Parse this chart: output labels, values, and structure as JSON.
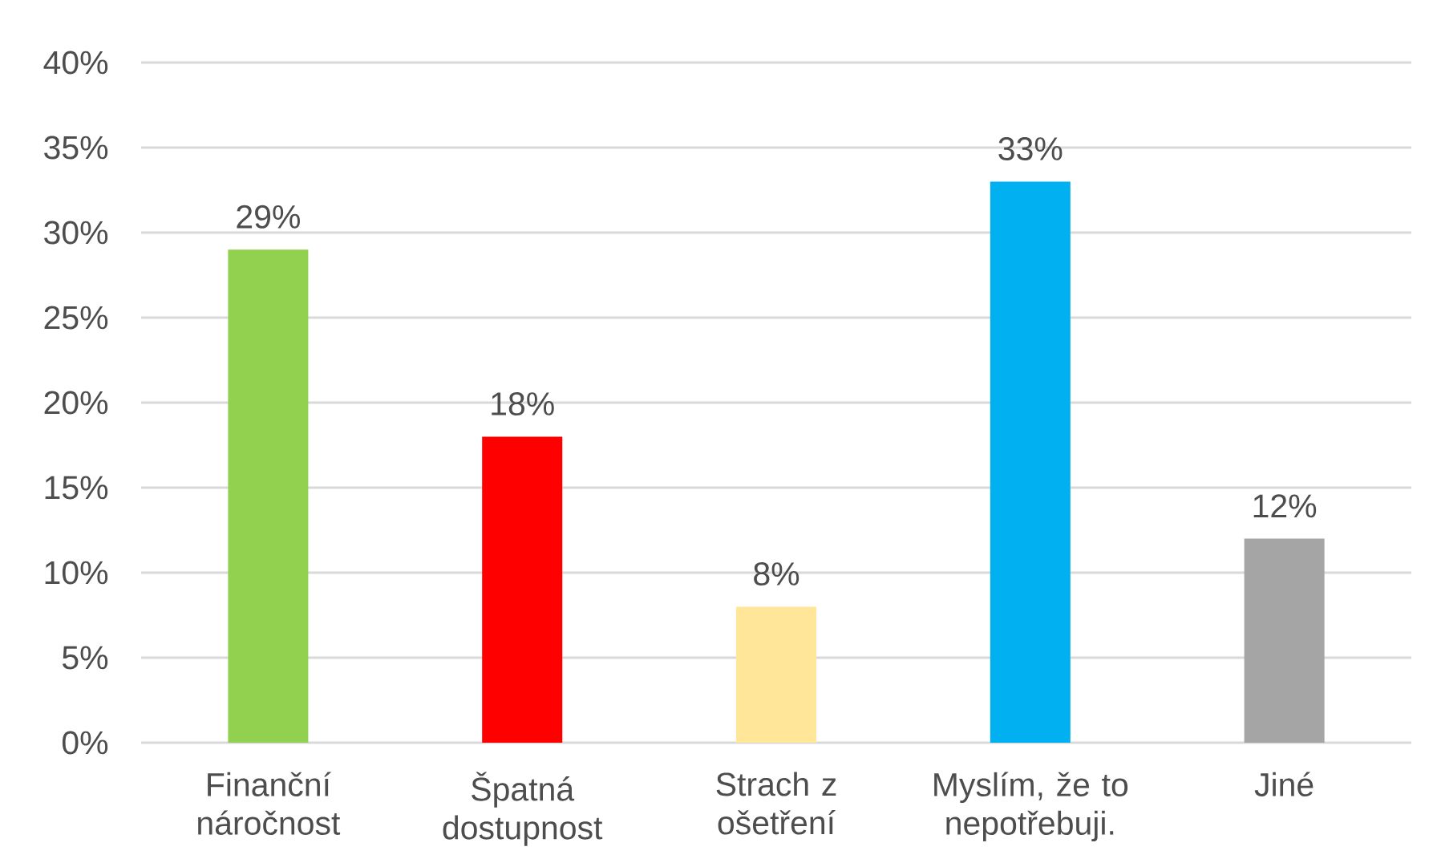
{
  "chart_data": {
    "type": "bar",
    "categories": [
      "Finanční náročnost",
      "Špatná dostupnost",
      "Strach z ošetření",
      "Myslím, že to nepotřebuji.",
      "Jiné"
    ],
    "values": [
      29,
      18,
      8,
      33,
      12
    ],
    "colors": [
      "#92d050",
      "#ff0000",
      "#ffe699",
      "#00b0f0",
      "#a5a5a5"
    ],
    "value_labels": [
      "29%",
      "18%",
      "8%",
      "33%",
      "12%"
    ],
    "ylim": [
      0,
      40
    ],
    "yticks": [
      {
        "value": 0,
        "label": "0%"
      },
      {
        "value": 5,
        "label": "5%"
      },
      {
        "value": 10,
        "label": "10%"
      },
      {
        "value": 15,
        "label": "15%"
      },
      {
        "value": 20,
        "label": "20%"
      },
      {
        "value": 25,
        "label": "25%"
      },
      {
        "value": 30,
        "label": "30%"
      },
      {
        "value": 35,
        "label": "35%"
      },
      {
        "value": 40,
        "label": "40%"
      }
    ],
    "grid": "y"
  }
}
